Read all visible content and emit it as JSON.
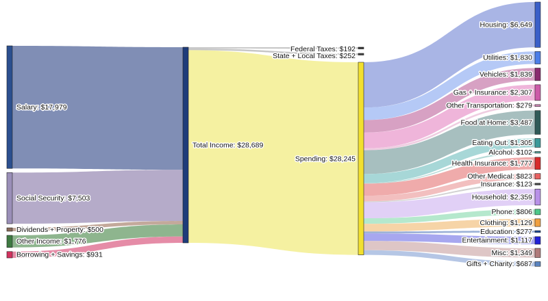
{
  "chart_data": {
    "type": "sankey",
    "title": "",
    "nodes": [
      {
        "id": "salary",
        "label": "Salary: $17,979",
        "value": 17979,
        "color": "#2b4f8f"
      },
      {
        "id": "social",
        "label": "Social Security: $7,503",
        "value": 7503,
        "color": "#9a8fb8"
      },
      {
        "id": "dividends",
        "label": "Dividends + Property: $500",
        "value": 500,
        "color": "#8a6a58"
      },
      {
        "id": "other_income",
        "label": "Other Income: $1,776",
        "value": 1776,
        "color": "#3f7a42"
      },
      {
        "id": "borrowing",
        "label": "Borrowing + Savings: $931",
        "value": 931,
        "color": "#d0325e"
      },
      {
        "id": "total",
        "label": "Total Income: $28,689",
        "value": 28689,
        "color": "#1e3c7a"
      },
      {
        "id": "federal",
        "label": "Federal Taxes: $192",
        "value": 192,
        "color": "#333333"
      },
      {
        "id": "state",
        "label": "State + Local Taxes: $252",
        "value": 252,
        "color": "#444444"
      },
      {
        "id": "spending",
        "label": "Spending: $28,245",
        "value": 28245,
        "color": "#f2e030"
      },
      {
        "id": "housing",
        "label": "Housing: $6,649",
        "value": 6649,
        "color": "#3a5fc8"
      },
      {
        "id": "utilities",
        "label": "Utilities: $1,830",
        "value": 1830,
        "color": "#4c7ee8"
      },
      {
        "id": "vehicles",
        "label": "Vehicles: $1,839",
        "value": 1839,
        "color": "#8a2a6e"
      },
      {
        "id": "gas",
        "label": "Gas + Insurance: $2,307",
        "value": 2307,
        "color": "#cc5aa8"
      },
      {
        "id": "other_transport",
        "label": "Other Transportation: $279",
        "value": 279,
        "color": "#d08ab8"
      },
      {
        "id": "food_home",
        "label": "Food at Home: $3,487",
        "value": 3487,
        "color": "#2f5a58"
      },
      {
        "id": "eating_out",
        "label": "Eating Out: $1,305",
        "value": 1305,
        "color": "#3a9a9a"
      },
      {
        "id": "alcohol",
        "label": "Alcohol: $102",
        "value": 102,
        "color": "#5aa8a0"
      },
      {
        "id": "health_ins",
        "label": "Health Insurance: $1,777",
        "value": 1777,
        "color": "#d82a2a"
      },
      {
        "id": "other_medical",
        "label": "Other Medical: $823",
        "value": 823,
        "color": "#e86060"
      },
      {
        "id": "insurance",
        "label": "Insurance: $123",
        "value": 123,
        "color": "#444444"
      },
      {
        "id": "household",
        "label": "Household: $2,359",
        "value": 2359,
        "color": "#b890e8"
      },
      {
        "id": "phone",
        "label": "Phone: $806",
        "value": 806,
        "color": "#4cc88a"
      },
      {
        "id": "clothing",
        "label": "Clothing: $1,129",
        "value": 1129,
        "color": "#f0a040"
      },
      {
        "id": "education",
        "label": "Education: $277",
        "value": 277,
        "color": "#1a4a9a"
      },
      {
        "id": "entertainment",
        "label": "Entertainment: $1,117",
        "value": 1117,
        "color": "#2020d8"
      },
      {
        "id": "misc",
        "label": "Misc: $1,349",
        "value": 1349,
        "color": "#b07a7a"
      },
      {
        "id": "gifts",
        "label": "Gifts + Charity: $687",
        "value": 687,
        "color": "#5a84c0"
      }
    ],
    "links": [
      {
        "source": "salary",
        "target": "total",
        "value": 17979,
        "color": "#6a7aa8"
      },
      {
        "source": "social",
        "target": "total",
        "value": 7503,
        "color": "#a89cc0"
      },
      {
        "source": "dividends",
        "target": "total",
        "value": 500,
        "color": "#b89a8a"
      },
      {
        "source": "other_income",
        "target": "total",
        "value": 1776,
        "color": "#7aa87a"
      },
      {
        "source": "borrowing",
        "target": "total",
        "value": 931,
        "color": "#e07898"
      },
      {
        "source": "total",
        "target": "federal",
        "value": 192,
        "color": "#bdbdbd"
      },
      {
        "source": "total",
        "target": "state",
        "value": 252,
        "color": "#bdbdbd"
      },
      {
        "source": "total",
        "target": "spending",
        "value": 28245,
        "color": "#f3ee90"
      },
      {
        "source": "spending",
        "target": "housing",
        "value": 6649,
        "color": "#9aa8e0"
      },
      {
        "source": "spending",
        "target": "utilities",
        "value": 1830,
        "color": "#a8c0f4"
      },
      {
        "source": "spending",
        "target": "vehicles",
        "value": 1839,
        "color": "#d090b8"
      },
      {
        "source": "spending",
        "target": "gas",
        "value": 2307,
        "color": "#eca8d4"
      },
      {
        "source": "spending",
        "target": "other_transport",
        "value": 279,
        "color": "#ecc4dc"
      },
      {
        "source": "spending",
        "target": "food_home",
        "value": 3487,
        "color": "#98b4b4"
      },
      {
        "source": "spending",
        "target": "eating_out",
        "value": 1305,
        "color": "#98d0d0"
      },
      {
        "source": "spending",
        "target": "alcohol",
        "value": 102,
        "color": "#a8d4d0"
      },
      {
        "source": "spending",
        "target": "health_ins",
        "value": 1777,
        "color": "#ec9c9c"
      },
      {
        "source": "spending",
        "target": "other_medical",
        "value": 823,
        "color": "#f0b4b4"
      },
      {
        "source": "spending",
        "target": "insurance",
        "value": 123,
        "color": "#c8c8c8"
      },
      {
        "source": "spending",
        "target": "household",
        "value": 2359,
        "color": "#dcc8f4"
      },
      {
        "source": "spending",
        "target": "phone",
        "value": 806,
        "color": "#a8e4c4"
      },
      {
        "source": "spending",
        "target": "clothing",
        "value": 1129,
        "color": "#f4cc98"
      },
      {
        "source": "spending",
        "target": "education",
        "value": 277,
        "color": "#8ca4d0"
      },
      {
        "source": "spending",
        "target": "entertainment",
        "value": 1117,
        "color": "#9898ec"
      },
      {
        "source": "spending",
        "target": "misc",
        "value": 1349,
        "color": "#d8bcbc"
      },
      {
        "source": "spending",
        "target": "gifts",
        "value": 687,
        "color": "#a8bce0"
      }
    ]
  }
}
